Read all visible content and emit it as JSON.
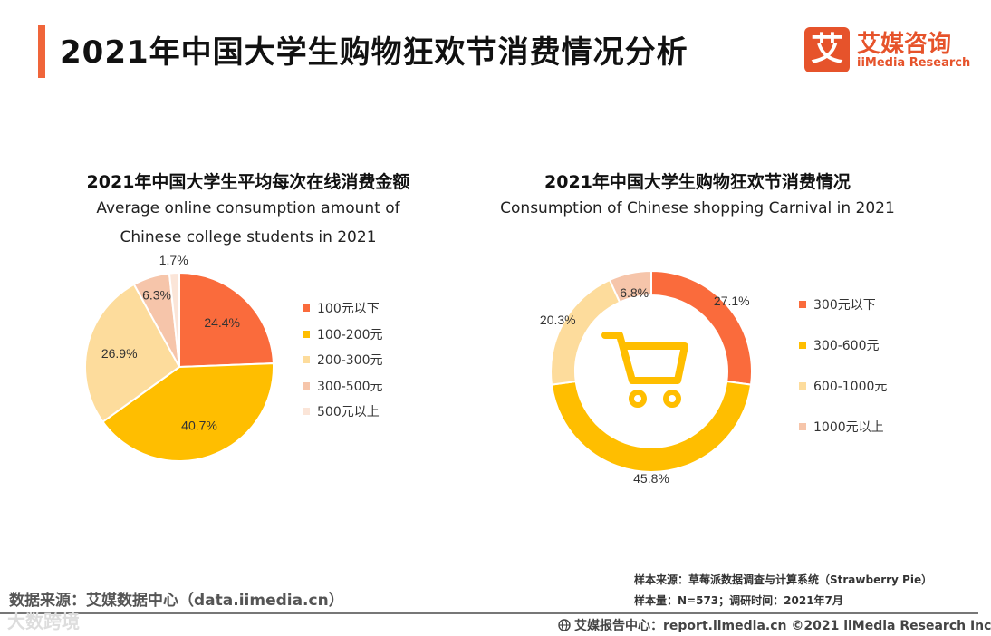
{
  "page": {
    "title": "2021年中国大学生购物狂欢节消费情况分析"
  },
  "logo": {
    "mark": "艾",
    "name_cn": "艾媒咨询",
    "name_en": "iiMedia Research"
  },
  "colors": {
    "accent": "#f0653a",
    "c1": "#f0653a",
    "c2": "#ffbf00",
    "c3": "#fcdc9c",
    "c4": "#f6c5aa",
    "c5": "#fbe5d8"
  },
  "chart_data": [
    {
      "type": "pie",
      "title": "2021年中国大学生平均每次在线消费金额",
      "subtitle": "Average online consumption amount of Chinese college students in 2021",
      "categories": [
        "100元以下",
        "100-200元",
        "200-300元",
        "300-500元",
        "500元以上"
      ],
      "values": [
        24.4,
        40.7,
        26.9,
        6.3,
        1.7
      ],
      "labels": [
        "24.4%",
        "40.7%",
        "26.9%",
        "6.3%",
        "1.7%"
      ],
      "colors": [
        "#fa6b3c",
        "#ffbe00",
        "#fddc9c",
        "#f6c5aa",
        "#fbe5d8"
      ],
      "legend_position": "right"
    },
    {
      "type": "pie",
      "subtype": "donut",
      "title": "2021年中国大学生购物狂欢节消费情况",
      "subtitle": "Consumption of Chinese shopping Carnival in 2021",
      "categories": [
        "300元以下",
        "300-600元",
        "600-1000元",
        "1000元以上"
      ],
      "values": [
        27.1,
        45.8,
        20.3,
        6.8
      ],
      "labels": [
        "27.1%",
        "45.8%",
        "20.3%",
        "6.8%"
      ],
      "colors": [
        "#fa6b3c",
        "#ffbe00",
        "#fddc9c",
        "#f6c5aa"
      ],
      "legend_position": "right"
    }
  ],
  "footer": {
    "source": "数据来源：艾媒数据中心（data.iimedia.cn）",
    "sample_source": "样本来源：草莓派数据调查与计算系统（Strawberry Pie）",
    "sample_size": "样本量：N=573；调研时间：2021年7月",
    "report_center": "艾媒报告中心：report.iimedia.cn    ©2021  iiMedia Research  Inc",
    "watermark": "大数跨境"
  }
}
